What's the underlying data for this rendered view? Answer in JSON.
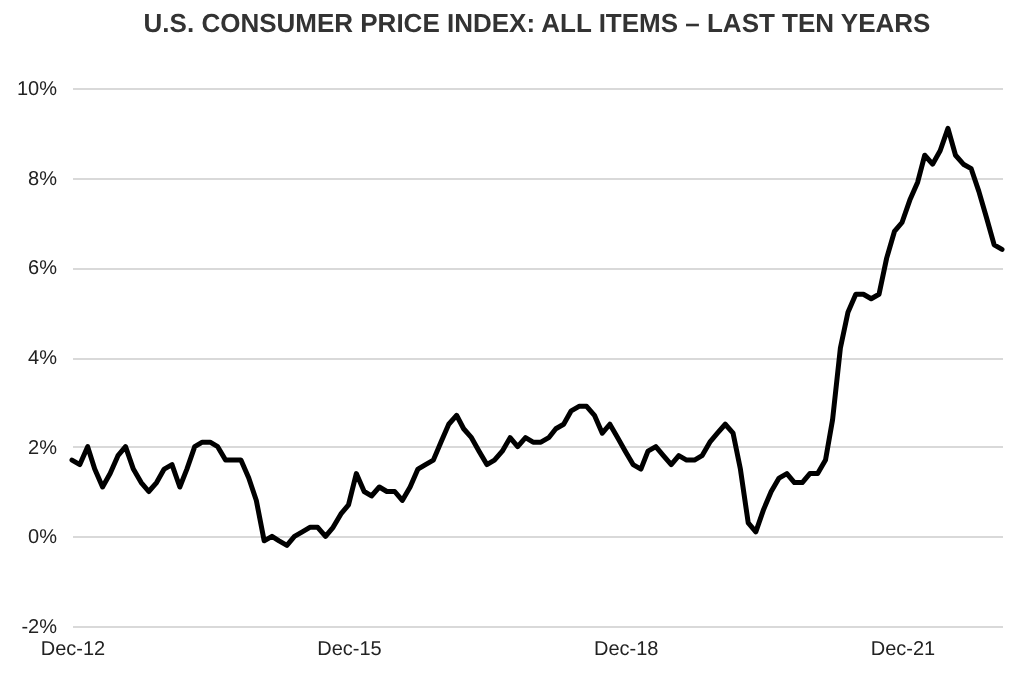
{
  "chart_data": {
    "type": "line",
    "title": "U.S. CONSUMER PRICE INDEX:  ALL ITEMS – LAST TEN YEARS",
    "x": [
      "2012-12",
      "2013-01",
      "2013-02",
      "2013-03",
      "2013-04",
      "2013-05",
      "2013-06",
      "2013-07",
      "2013-08",
      "2013-09",
      "2013-10",
      "2013-11",
      "2013-12",
      "2014-01",
      "2014-02",
      "2014-03",
      "2014-04",
      "2014-05",
      "2014-06",
      "2014-07",
      "2014-08",
      "2014-09",
      "2014-10",
      "2014-11",
      "2014-12",
      "2015-01",
      "2015-02",
      "2015-03",
      "2015-04",
      "2015-05",
      "2015-06",
      "2015-07",
      "2015-08",
      "2015-09",
      "2015-10",
      "2015-11",
      "2015-12",
      "2016-01",
      "2016-02",
      "2016-03",
      "2016-04",
      "2016-05",
      "2016-06",
      "2016-07",
      "2016-08",
      "2016-09",
      "2016-10",
      "2016-11",
      "2016-12",
      "2017-01",
      "2017-02",
      "2017-03",
      "2017-04",
      "2017-05",
      "2017-06",
      "2017-07",
      "2017-08",
      "2017-09",
      "2017-10",
      "2017-11",
      "2017-12",
      "2018-01",
      "2018-02",
      "2018-03",
      "2018-04",
      "2018-05",
      "2018-06",
      "2018-07",
      "2018-08",
      "2018-09",
      "2018-10",
      "2018-11",
      "2018-12",
      "2019-01",
      "2019-02",
      "2019-03",
      "2019-04",
      "2019-05",
      "2019-06",
      "2019-07",
      "2019-08",
      "2019-09",
      "2019-10",
      "2019-11",
      "2019-12",
      "2020-01",
      "2020-02",
      "2020-03",
      "2020-04",
      "2020-05",
      "2020-06",
      "2020-07",
      "2020-08",
      "2020-09",
      "2020-10",
      "2020-11",
      "2020-12",
      "2021-01",
      "2021-02",
      "2021-03",
      "2021-04",
      "2021-05",
      "2021-06",
      "2021-07",
      "2021-08",
      "2021-09",
      "2021-10",
      "2021-11",
      "2021-12",
      "2022-01",
      "2022-02",
      "2022-03",
      "2022-04",
      "2022-05",
      "2022-06",
      "2022-07",
      "2022-08",
      "2022-09",
      "2022-10",
      "2022-11",
      "2022-12",
      "2023-01"
    ],
    "series": [
      {
        "color": "#000000",
        "values": [
          1.7,
          1.6,
          2.0,
          1.5,
          1.1,
          1.4,
          1.8,
          2.0,
          1.5,
          1.2,
          1.0,
          1.2,
          1.5,
          1.6,
          1.1,
          1.5,
          2.0,
          2.1,
          2.1,
          2.0,
          1.7,
          1.7,
          1.7,
          1.3,
          0.8,
          -0.1,
          0.0,
          -0.1,
          -0.2,
          0.0,
          0.1,
          0.2,
          0.2,
          0.0,
          0.2,
          0.5,
          0.7,
          1.4,
          1.0,
          0.9,
          1.1,
          1.0,
          1.0,
          0.8,
          1.1,
          1.5,
          1.6,
          1.7,
          2.1,
          2.5,
          2.7,
          2.4,
          2.2,
          1.9,
          1.6,
          1.7,
          1.9,
          2.2,
          2.0,
          2.2,
          2.1,
          2.1,
          2.2,
          2.4,
          2.5,
          2.8,
          2.9,
          2.9,
          2.7,
          2.3,
          2.5,
          2.2,
          1.9,
          1.6,
          1.5,
          1.9,
          2.0,
          1.8,
          1.6,
          1.8,
          1.7,
          1.7,
          1.8,
          2.1,
          2.3,
          2.5,
          2.3,
          1.5,
          0.3,
          0.1,
          0.6,
          1.0,
          1.3,
          1.4,
          1.2,
          1.2,
          1.4,
          1.4,
          1.7,
          2.6,
          4.2,
          5.0,
          5.4,
          5.4,
          5.3,
          5.4,
          6.2,
          6.8,
          7.0,
          7.5,
          7.9,
          8.5,
          8.3,
          8.6,
          9.1,
          8.5,
          8.3,
          8.2,
          7.7,
          7.1,
          6.5,
          6.4
        ]
      }
    ],
    "xlim": [
      "2012-12",
      "2023-01"
    ],
    "xticks": [
      {
        "value": "2012-12",
        "label": "Dec-12"
      },
      {
        "value": "2015-12",
        "label": "Dec-15"
      },
      {
        "value": "2018-12",
        "label": "Dec-18"
      },
      {
        "value": "2021-12",
        "label": "Dec-21"
      }
    ],
    "ylim": [
      -2,
      10
    ],
    "yticks": [
      {
        "value": -2,
        "label": "-2%"
      },
      {
        "value": 0,
        "label": "0%"
      },
      {
        "value": 2,
        "label": "2%"
      },
      {
        "value": 4,
        "label": "4%"
      },
      {
        "value": 6,
        "label": "6%"
      },
      {
        "value": 8,
        "label": "8%"
      },
      {
        "value": 10,
        "label": "10%"
      }
    ],
    "grid": "y",
    "line_style": "solid"
  }
}
